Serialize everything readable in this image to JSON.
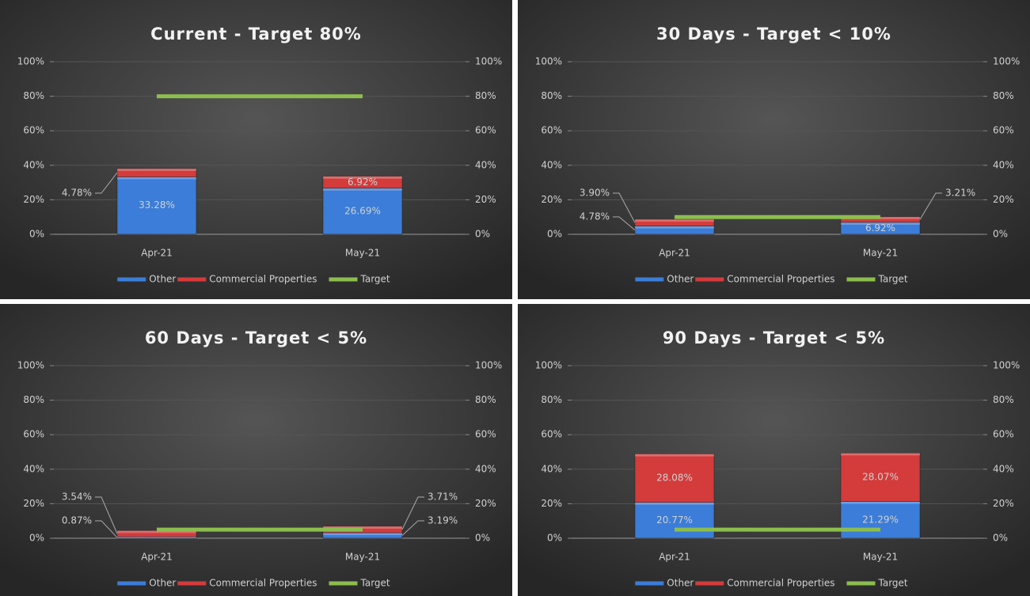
{
  "chart_data": [
    {
      "type": "bar",
      "title": "Current - Target 80%",
      "categories": [
        "Apr-21",
        "May-21"
      ],
      "series": [
        {
          "name": "Other",
          "color": "#3b7dd8",
          "values": [
            33.28,
            26.69
          ],
          "value_labels": [
            "33.28%",
            "26.69%"
          ]
        },
        {
          "name": "Commercial Properties",
          "color": "#d43b3b",
          "values": [
            4.78,
            6.92
          ],
          "value_labels": [
            "4.78%",
            "6.92%"
          ]
        },
        {
          "name": "Target",
          "color": "#8cbd4e",
          "type": "line",
          "values": [
            80,
            80
          ]
        }
      ],
      "ylim": [
        0,
        100
      ],
      "yticks": [
        {
          "value": 0,
          "label": "0%"
        },
        {
          "value": 20,
          "label": "20%"
        },
        {
          "value": 40,
          "label": "40%"
        },
        {
          "value": 60,
          "label": "60%"
        },
        {
          "value": 80,
          "label": "80%"
        },
        {
          "value": 100,
          "label": "100%"
        }
      ],
      "y2lim": [
        0,
        100
      ],
      "y2ticks": [
        {
          "value": 0,
          "label": "0%"
        },
        {
          "value": 20,
          "label": "20%"
        },
        {
          "value": 40,
          "label": "40%"
        },
        {
          "value": 60,
          "label": "60%"
        },
        {
          "value": 80,
          "label": "80%"
        },
        {
          "value": 100,
          "label": "100%"
        }
      ],
      "grid": true,
      "legend": "bottom"
    },
    {
      "type": "bar",
      "title": "30 Days - Target < 10%",
      "categories": [
        "Apr-21",
        "May-21"
      ],
      "series": [
        {
          "name": "Other",
          "color": "#3b7dd8",
          "values": [
            4.78,
            6.92
          ],
          "value_labels": [
            "4.78%",
            "6.92%"
          ]
        },
        {
          "name": "Commercial Properties",
          "color": "#d43b3b",
          "values": [
            3.9,
            3.21
          ],
          "value_labels": [
            "3.90%",
            "3.21%"
          ]
        },
        {
          "name": "Target",
          "color": "#8cbd4e",
          "type": "line",
          "values": [
            10,
            10
          ]
        }
      ],
      "ylim": [
        0,
        100
      ],
      "yticks": [
        {
          "value": 0,
          "label": "0%"
        },
        {
          "value": 20,
          "label": "20%"
        },
        {
          "value": 40,
          "label": "40%"
        },
        {
          "value": 60,
          "label": "60%"
        },
        {
          "value": 80,
          "label": "80%"
        },
        {
          "value": 100,
          "label": "100%"
        }
      ],
      "y2lim": [
        0,
        100
      ],
      "y2ticks": [
        {
          "value": 0,
          "label": "0%"
        },
        {
          "value": 20,
          "label": "20%"
        },
        {
          "value": 40,
          "label": "40%"
        },
        {
          "value": 60,
          "label": "60%"
        },
        {
          "value": 80,
          "label": "80%"
        },
        {
          "value": 100,
          "label": "100%"
        }
      ],
      "grid": true,
      "legend": "bottom"
    },
    {
      "type": "bar",
      "title": "60 Days - Target < 5%",
      "categories": [
        "Apr-21",
        "May-21"
      ],
      "series": [
        {
          "name": "Other",
          "color": "#3b7dd8",
          "values": [
            0.87,
            3.19
          ],
          "value_labels": [
            "0.87%",
            "3.19%"
          ]
        },
        {
          "name": "Commercial Properties",
          "color": "#d43b3b",
          "values": [
            3.54,
            3.71
          ],
          "value_labels": [
            "3.54%",
            "3.71%"
          ]
        },
        {
          "name": "Target",
          "color": "#8cbd4e",
          "type": "line",
          "values": [
            5,
            5
          ]
        }
      ],
      "ylim": [
        0,
        100
      ],
      "yticks": [
        {
          "value": 0,
          "label": "0%"
        },
        {
          "value": 20,
          "label": "20%"
        },
        {
          "value": 40,
          "label": "40%"
        },
        {
          "value": 60,
          "label": "60%"
        },
        {
          "value": 80,
          "label": "80%"
        },
        {
          "value": 100,
          "label": "100%"
        }
      ],
      "y2lim": [
        0,
        100
      ],
      "y2ticks": [
        {
          "value": 0,
          "label": "0%"
        },
        {
          "value": 20,
          "label": "20%"
        },
        {
          "value": 40,
          "label": "40%"
        },
        {
          "value": 60,
          "label": "60%"
        },
        {
          "value": 80,
          "label": "80%"
        },
        {
          "value": 100,
          "label": "100%"
        }
      ],
      "grid": true,
      "legend": "bottom"
    },
    {
      "type": "bar",
      "title": "90 Days - Target < 5%",
      "categories": [
        "Apr-21",
        "May-21"
      ],
      "series": [
        {
          "name": "Other",
          "color": "#3b7dd8",
          "values": [
            20.77,
            21.29
          ],
          "value_labels": [
            "20.77%",
            "21.29%"
          ]
        },
        {
          "name": "Commercial Properties",
          "color": "#d43b3b",
          "values": [
            28.08,
            28.07
          ],
          "value_labels": [
            "28.08%",
            "28.07%"
          ]
        },
        {
          "name": "Target",
          "color": "#8cbd4e",
          "type": "line",
          "values": [
            5,
            5
          ]
        }
      ],
      "ylim": [
        0,
        100
      ],
      "yticks": [
        {
          "value": 0,
          "label": "0%"
        },
        {
          "value": 20,
          "label": "20%"
        },
        {
          "value": 40,
          "label": "40%"
        },
        {
          "value": 60,
          "label": "60%"
        },
        {
          "value": 80,
          "label": "80%"
        },
        {
          "value": 100,
          "label": "100%"
        }
      ],
      "y2lim": [
        0,
        100
      ],
      "y2ticks": [
        {
          "value": 0,
          "label": "0%"
        },
        {
          "value": 20,
          "label": "20%"
        },
        {
          "value": 40,
          "label": "40%"
        },
        {
          "value": 60,
          "label": "60%"
        },
        {
          "value": 80,
          "label": "80%"
        },
        {
          "value": 100,
          "label": "100%"
        }
      ],
      "grid": true,
      "legend": "bottom"
    }
  ]
}
